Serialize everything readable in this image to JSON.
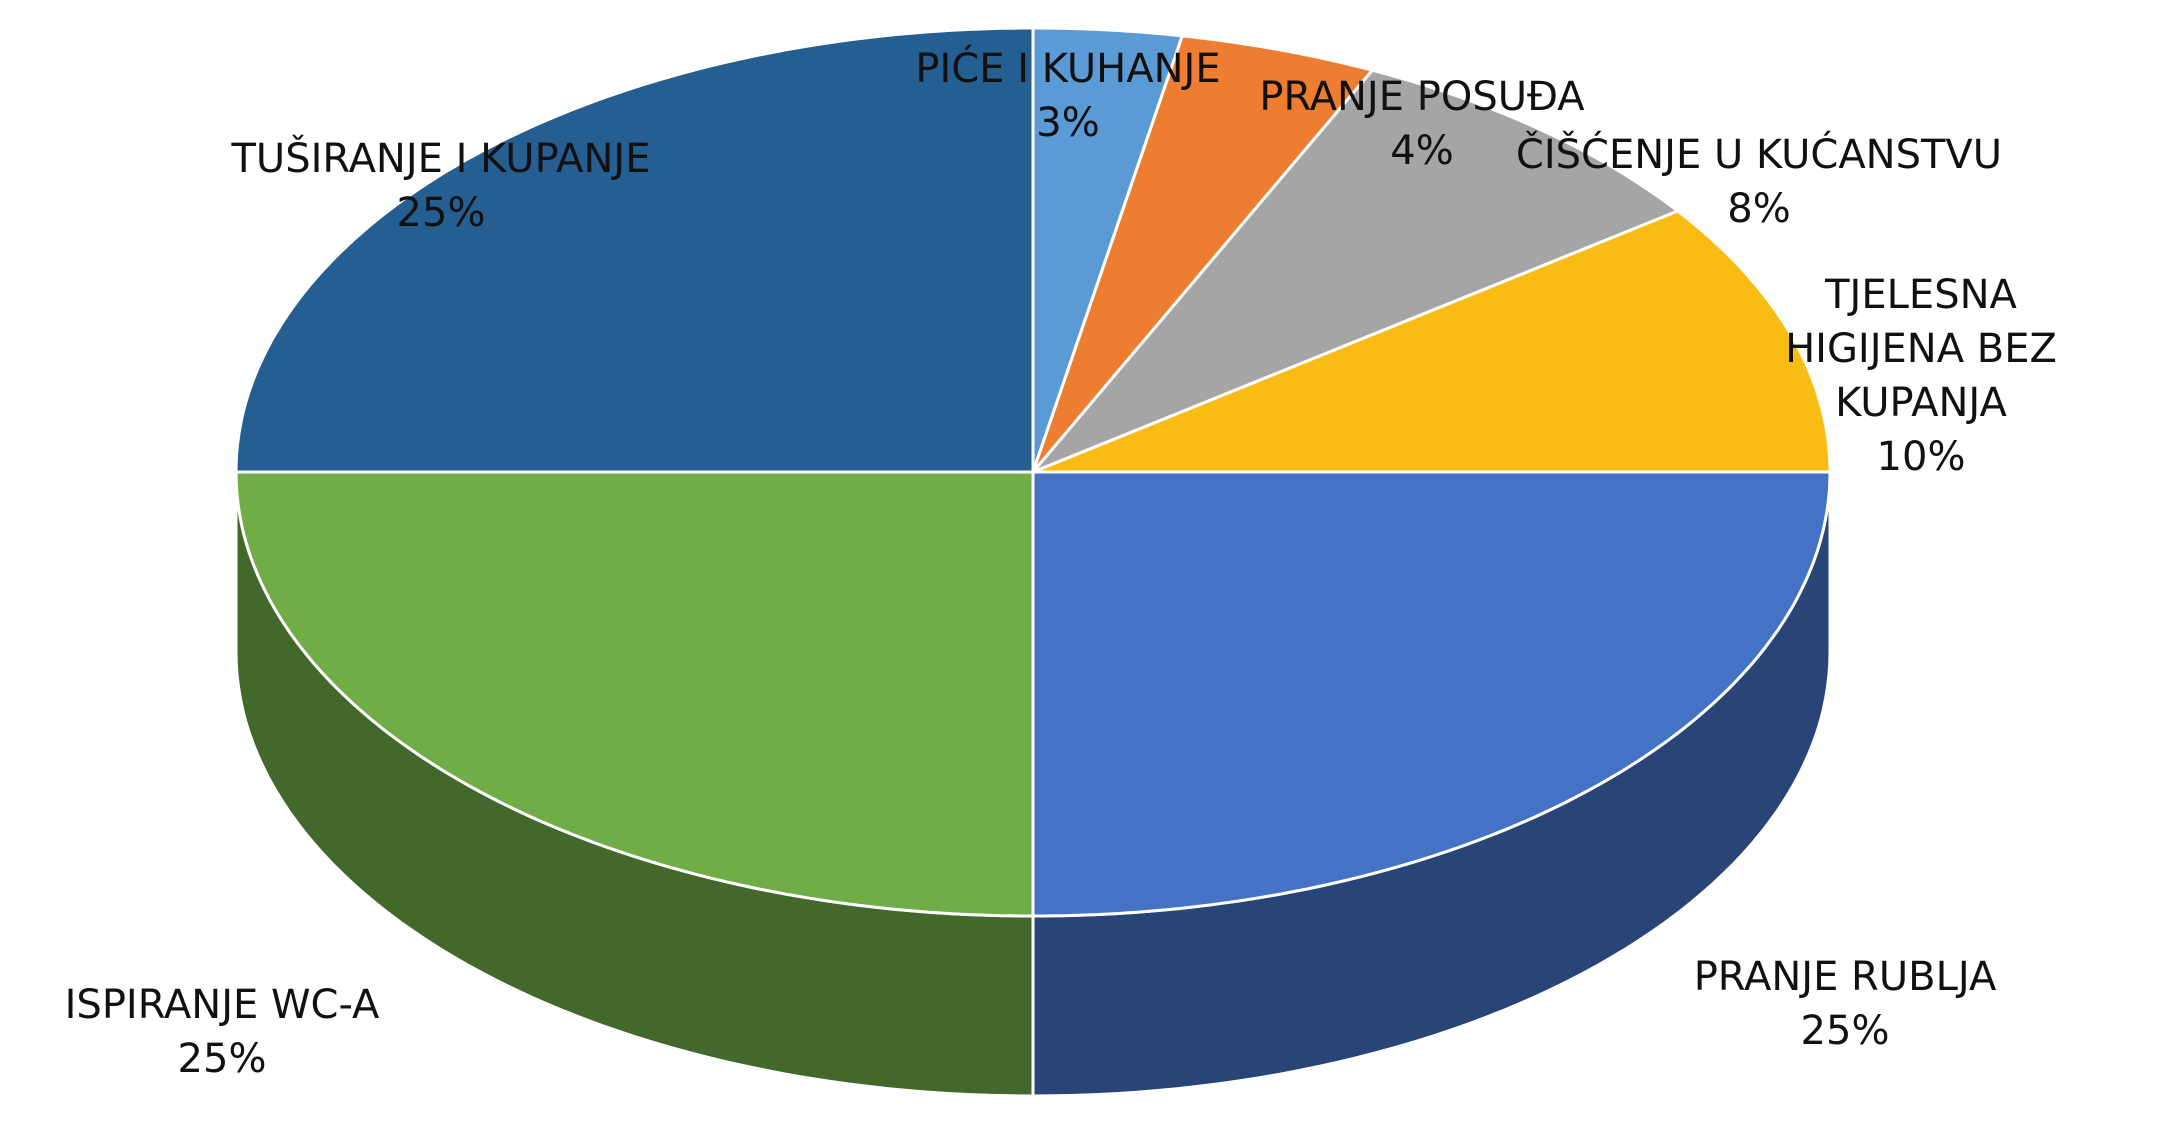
{
  "chart_data": {
    "type": "pie",
    "categories": [
      "PIĆE I KUHANJE",
      "PRANJE POSUĐA",
      "ČIŠĆENJE U KUĆANSTVU",
      "TJELESNA HIGIJENA BEZ KUPANJA",
      "PRANJE RUBLJA",
      "ISPIRANJE WC-A",
      "TUŠIRANJE I KUPANJE"
    ],
    "values": [
      3,
      4,
      8,
      10,
      25,
      25,
      25
    ],
    "value_labels": [
      "3%",
      "4%",
      "8%",
      "10%",
      "25%",
      "25%",
      "25%"
    ],
    "colors": [
      "#5b9bd5",
      "#ed7d31",
      "#a5a5a5",
      "#f9bc15",
      "#4472c4",
      "#70ad47",
      "#255e91"
    ]
  }
}
